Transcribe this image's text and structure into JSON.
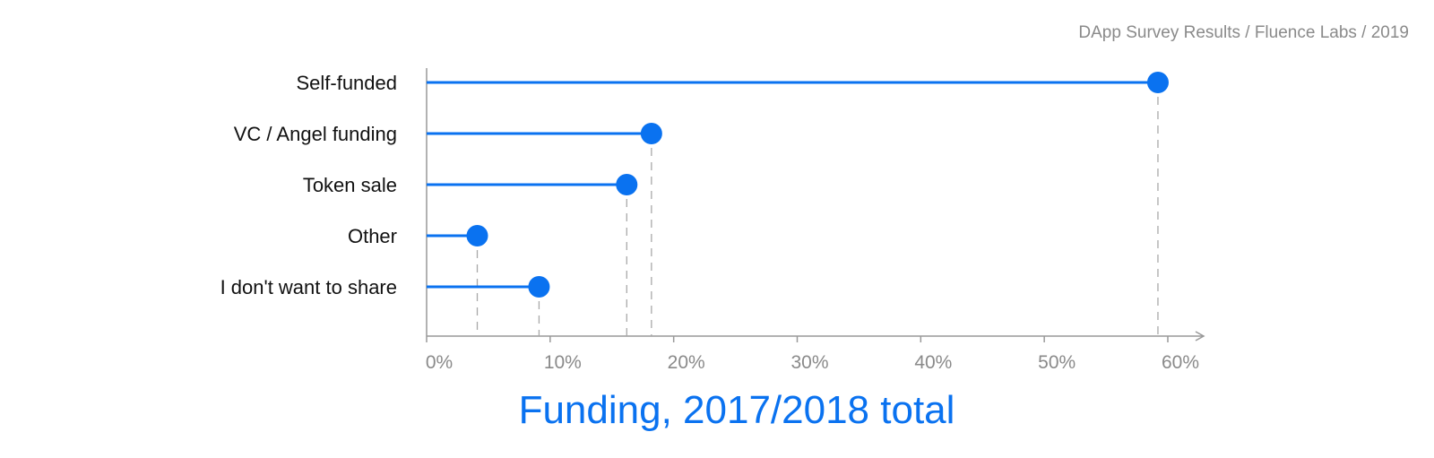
{
  "header": {
    "credit": "DApp Survey Results / Fluence Labs / 2019"
  },
  "colors": {
    "accent": "#0a72f0",
    "axis": "#999999",
    "guide": "#a8a8a8"
  },
  "chart_data": {
    "type": "lollipop",
    "title": "Funding, 2017/2018 total",
    "categories": [
      "Self-funded",
      "VC / Angel funding",
      "Token sale",
      "Other",
      "I don't want to share"
    ],
    "values": [
      59.2,
      18.2,
      16.2,
      4.1,
      9.1
    ],
    "x_ticks": [
      0,
      10,
      20,
      30,
      40,
      50,
      60
    ],
    "x_tick_labels": [
      "0%",
      "10%",
      "20%",
      "30%",
      "40%",
      "50%",
      "60%"
    ],
    "xlim": [
      0,
      60
    ],
    "unit": "%",
    "grid": false,
    "legend": "none"
  }
}
